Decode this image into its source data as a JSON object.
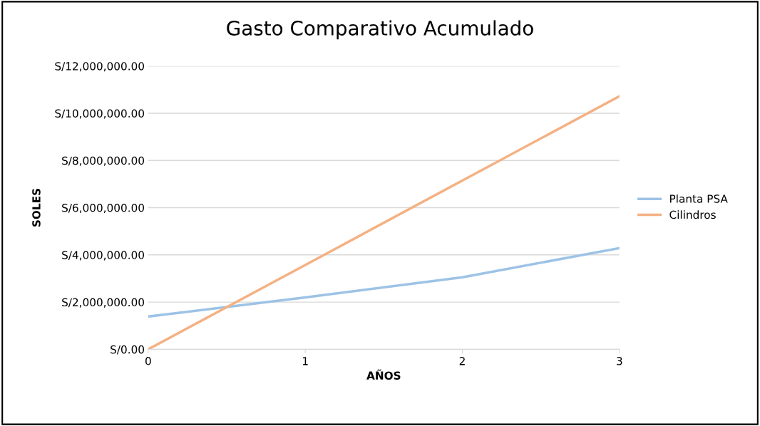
{
  "chart_data": {
    "type": "line",
    "title": "Gasto Comparativo Acumulado",
    "xlabel": "AÑOS",
    "ylabel": "SOLES",
    "x": [
      0,
      1,
      2,
      3
    ],
    "series": [
      {
        "name": "Planta PSA",
        "color": "#9dc3e6",
        "values": [
          1390000,
          2200000,
          3050000,
          4290000
        ]
      },
      {
        "name": "Cilindros",
        "color": "#f4b183",
        "values": [
          0,
          3570000,
          7150000,
          10720000
        ]
      }
    ],
    "xlim": [
      0,
      3
    ],
    "xticks": [
      0,
      1,
      2,
      3
    ],
    "ylim": [
      0,
      12000000
    ],
    "yticks": [
      {
        "value": 0,
        "label": "S/0.00"
      },
      {
        "value": 2000000,
        "label": "S/2,000,000.00"
      },
      {
        "value": 4000000,
        "label": "S/4,000,000.00"
      },
      {
        "value": 6000000,
        "label": "S/6,000,000.00"
      },
      {
        "value": 8000000,
        "label": "S/8,000,000.00"
      },
      {
        "value": 10000000,
        "label": "S/10,000,000.00"
      },
      {
        "value": 12000000,
        "label": "S/12,000,000.00"
      }
    ],
    "grid": "y",
    "legend": "right",
    "marker": "none",
    "line_style": "solid"
  }
}
